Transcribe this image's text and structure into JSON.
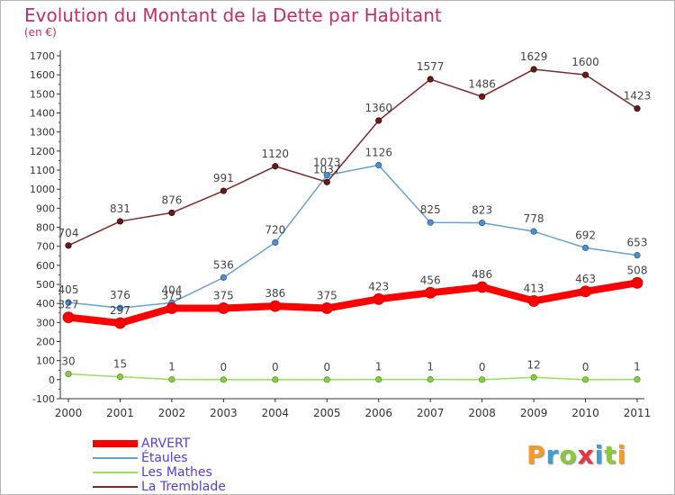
{
  "header": {
    "title": "Evolution du Montant de la Dette par Habitant",
    "subtitle": "(en €)"
  },
  "logo": {
    "text": "Proxiti",
    "colors": [
      "#f29b2a",
      "#3aa0d8",
      "#8cc63f",
      "#e2373e",
      "#3aa0d8",
      "#8cc63f",
      "#f29b2a"
    ]
  },
  "chart_data": {
    "type": "line",
    "title": "Evolution du Montant de la Dette par Habitant",
    "subtitle": "(en €)",
    "x": [
      "2000",
      "2001",
      "2002",
      "2003",
      "2004",
      "2005",
      "2006",
      "2007",
      "2008",
      "2009",
      "2010",
      "2011"
    ],
    "ylim": [
      -100,
      1700
    ],
    "yticks": [
      -100,
      0,
      100,
      200,
      300,
      400,
      500,
      600,
      700,
      800,
      900,
      1000,
      1100,
      1200,
      1300,
      1400,
      1500,
      1600,
      1700
    ],
    "grid": false,
    "legend": "bottom-left",
    "series": [
      {
        "name": "ARVERT",
        "color": "#ff0000",
        "values": [
          327,
          297,
          375,
          375,
          386,
          375,
          423,
          456,
          486,
          413,
          463,
          508
        ],
        "labels": [
          "327",
          "297",
          "375",
          "375",
          "386",
          "375",
          "423",
          "456",
          "486",
          "413",
          "463",
          "508"
        ]
      },
      {
        "name": "Étaules",
        "color": "#6a9fd0",
        "values": [
          405,
          376,
          404,
          536,
          720,
          1073,
          1126,
          825,
          823,
          778,
          692,
          653
        ],
        "labels": [
          "405",
          "376",
          "404",
          "536",
          "720",
          "1073",
          "1126",
          "825",
          "823",
          "778",
          "692",
          "653"
        ]
      },
      {
        "name": "Les Mathes",
        "color": "#99dd66",
        "values": [
          30,
          15,
          1,
          0,
          0,
          0,
          1,
          1,
          0,
          12,
          0,
          1
        ],
        "labels": [
          "30",
          "15",
          "1",
          "0",
          "0",
          "0",
          "1",
          "1",
          "0",
          "12",
          "0",
          "1"
        ]
      },
      {
        "name": "La Tremblade",
        "color": "#7a2a2a",
        "values": [
          704,
          831,
          876,
          991,
          1120,
          1037,
          1360,
          1577,
          1486,
          1629,
          1600,
          1423
        ],
        "labels": [
          "704",
          "831",
          "876",
          "991",
          "1120",
          "1037",
          "1360",
          "1577",
          "1486",
          "1629",
          "1600",
          "1423"
        ]
      }
    ]
  }
}
